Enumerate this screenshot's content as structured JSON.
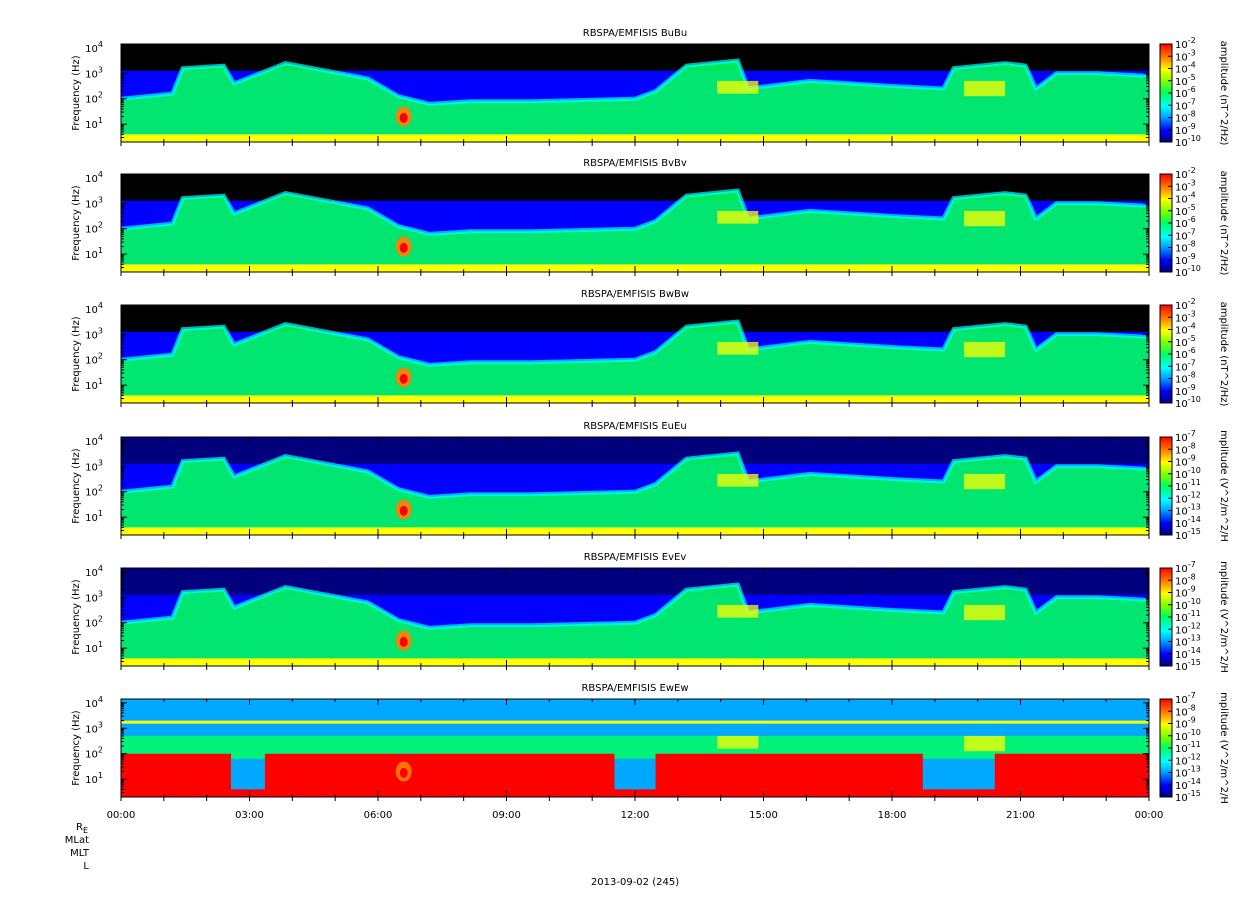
{
  "figure": {
    "date_label": "2013-09-02 (245)",
    "x_tick_labels": [
      "00:00",
      "03:00",
      "06:00",
      "09:00",
      "12:00",
      "15:00",
      "18:00",
      "21:00",
      "00:00"
    ],
    "ephemeris_labels": {
      "re_main": "R",
      "re_sub": "E",
      "mlat": "MLat",
      "mlt": "MLT",
      "l": "L"
    }
  },
  "chart_data": [
    {
      "type": "heatmap",
      "title": "RBSPA/EMFISIS  BuBu",
      "ylabel": "Frequency (Hz)",
      "y_scale": "log",
      "y_ticks": [
        {
          "base": "10",
          "exp": "1"
        },
        {
          "base": "10",
          "exp": "2"
        },
        {
          "base": "10",
          "exp": "3"
        },
        {
          "base": "10",
          "exp": "4"
        }
      ],
      "x": [
        "00:00",
        "03:00",
        "06:00",
        "09:00",
        "12:00",
        "15:00",
        "18:00",
        "21:00",
        "00:00"
      ],
      "colorbar_label": "amplitude (nT^2/Hz)",
      "colorbar_ticks": [
        {
          "base": "10",
          "exp": "-2"
        },
        {
          "base": "10",
          "exp": "-3"
        },
        {
          "base": "10",
          "exp": "-4"
        },
        {
          "base": "10",
          "exp": "-5"
        },
        {
          "base": "10",
          "exp": "-6"
        },
        {
          "base": "10",
          "exp": "-7"
        },
        {
          "base": "10",
          "exp": "-8"
        },
        {
          "base": "10",
          "exp": "-9"
        },
        {
          "base": "10",
          "exp": "-10"
        }
      ]
    },
    {
      "type": "heatmap",
      "title": "RBSPA/EMFISIS  BvBv",
      "ylabel": "Frequency (Hz)",
      "y_scale": "log",
      "y_ticks": [
        {
          "base": "10",
          "exp": "1"
        },
        {
          "base": "10",
          "exp": "2"
        },
        {
          "base": "10",
          "exp": "3"
        },
        {
          "base": "10",
          "exp": "4"
        }
      ],
      "x": [
        "00:00",
        "03:00",
        "06:00",
        "09:00",
        "12:00",
        "15:00",
        "18:00",
        "21:00",
        "00:00"
      ],
      "colorbar_label": "amplitude (nT^2/Hz)",
      "colorbar_ticks": [
        {
          "base": "10",
          "exp": "-2"
        },
        {
          "base": "10",
          "exp": "-3"
        },
        {
          "base": "10",
          "exp": "-4"
        },
        {
          "base": "10",
          "exp": "-5"
        },
        {
          "base": "10",
          "exp": "-6"
        },
        {
          "base": "10",
          "exp": "-7"
        },
        {
          "base": "10",
          "exp": "-8"
        },
        {
          "base": "10",
          "exp": "-9"
        },
        {
          "base": "10",
          "exp": "-10"
        }
      ]
    },
    {
      "type": "heatmap",
      "title": "RBSPA/EMFISIS  BwBw",
      "ylabel": "Frequency (Hz)",
      "y_scale": "log",
      "y_ticks": [
        {
          "base": "10",
          "exp": "1"
        },
        {
          "base": "10",
          "exp": "2"
        },
        {
          "base": "10",
          "exp": "3"
        },
        {
          "base": "10",
          "exp": "4"
        }
      ],
      "x": [
        "00:00",
        "03:00",
        "06:00",
        "09:00",
        "12:00",
        "15:00",
        "18:00",
        "21:00",
        "00:00"
      ],
      "colorbar_label": "amplitude (nT^2/Hz)",
      "colorbar_ticks": [
        {
          "base": "10",
          "exp": "-2"
        },
        {
          "base": "10",
          "exp": "-3"
        },
        {
          "base": "10",
          "exp": "-4"
        },
        {
          "base": "10",
          "exp": "-5"
        },
        {
          "base": "10",
          "exp": "-6"
        },
        {
          "base": "10",
          "exp": "-7"
        },
        {
          "base": "10",
          "exp": "-8"
        },
        {
          "base": "10",
          "exp": "-9"
        },
        {
          "base": "10",
          "exp": "-10"
        }
      ]
    },
    {
      "type": "heatmap",
      "title": "RBSPA/EMFISIS  EuEu",
      "ylabel": "Frequency (Hz)",
      "y_scale": "log",
      "y_ticks": [
        {
          "base": "10",
          "exp": "1"
        },
        {
          "base": "10",
          "exp": "2"
        },
        {
          "base": "10",
          "exp": "3"
        },
        {
          "base": "10",
          "exp": "4"
        }
      ],
      "x": [
        "00:00",
        "03:00",
        "06:00",
        "09:00",
        "12:00",
        "15:00",
        "18:00",
        "21:00",
        "00:00"
      ],
      "colorbar_label": "mplitude (V^2/m^2/H",
      "colorbar_ticks": [
        {
          "base": "10",
          "exp": "-7"
        },
        {
          "base": "10",
          "exp": "-8"
        },
        {
          "base": "10",
          "exp": "-9"
        },
        {
          "base": "10",
          "exp": "-10"
        },
        {
          "base": "10",
          "exp": "-11"
        },
        {
          "base": "10",
          "exp": "-12"
        },
        {
          "base": "10",
          "exp": "-13"
        },
        {
          "base": "10",
          "exp": "-14"
        },
        {
          "base": "10",
          "exp": "-15"
        }
      ]
    },
    {
      "type": "heatmap",
      "title": "RBSPA/EMFISIS  EvEv",
      "ylabel": "Frequency (Hz)",
      "y_scale": "log",
      "y_ticks": [
        {
          "base": "10",
          "exp": "1"
        },
        {
          "base": "10",
          "exp": "2"
        },
        {
          "base": "10",
          "exp": "3"
        },
        {
          "base": "10",
          "exp": "4"
        }
      ],
      "x": [
        "00:00",
        "03:00",
        "06:00",
        "09:00",
        "12:00",
        "15:00",
        "18:00",
        "21:00",
        "00:00"
      ],
      "colorbar_label": "mplitude (V^2/m^2/H",
      "colorbar_ticks": [
        {
          "base": "10",
          "exp": "-7"
        },
        {
          "base": "10",
          "exp": "-8"
        },
        {
          "base": "10",
          "exp": "-9"
        },
        {
          "base": "10",
          "exp": "-10"
        },
        {
          "base": "10",
          "exp": "-11"
        },
        {
          "base": "10",
          "exp": "-12"
        },
        {
          "base": "10",
          "exp": "-13"
        },
        {
          "base": "10",
          "exp": "-14"
        },
        {
          "base": "10",
          "exp": "-15"
        }
      ]
    },
    {
      "type": "heatmap",
      "title": "RBSPA/EMFISIS  EwEw",
      "ylabel": "Frequency (Hz)",
      "y_scale": "log",
      "y_ticks": [
        {
          "base": "10",
          "exp": "1"
        },
        {
          "base": "10",
          "exp": "2"
        },
        {
          "base": "10",
          "exp": "3"
        },
        {
          "base": "10",
          "exp": "4"
        }
      ],
      "x": [
        "00:00",
        "03:00",
        "06:00",
        "09:00",
        "12:00",
        "15:00",
        "18:00",
        "21:00",
        "00:00"
      ],
      "colorbar_label": "mplitude (V^2/m^2/H",
      "colorbar_ticks": [
        {
          "base": "10",
          "exp": "-7"
        },
        {
          "base": "10",
          "exp": "-8"
        },
        {
          "base": "10",
          "exp": "-9"
        },
        {
          "base": "10",
          "exp": "-10"
        },
        {
          "base": "10",
          "exp": "-11"
        },
        {
          "base": "10",
          "exp": "-12"
        },
        {
          "base": "10",
          "exp": "-13"
        },
        {
          "base": "10",
          "exp": "-14"
        },
        {
          "base": "10",
          "exp": "-15"
        }
      ]
    }
  ]
}
